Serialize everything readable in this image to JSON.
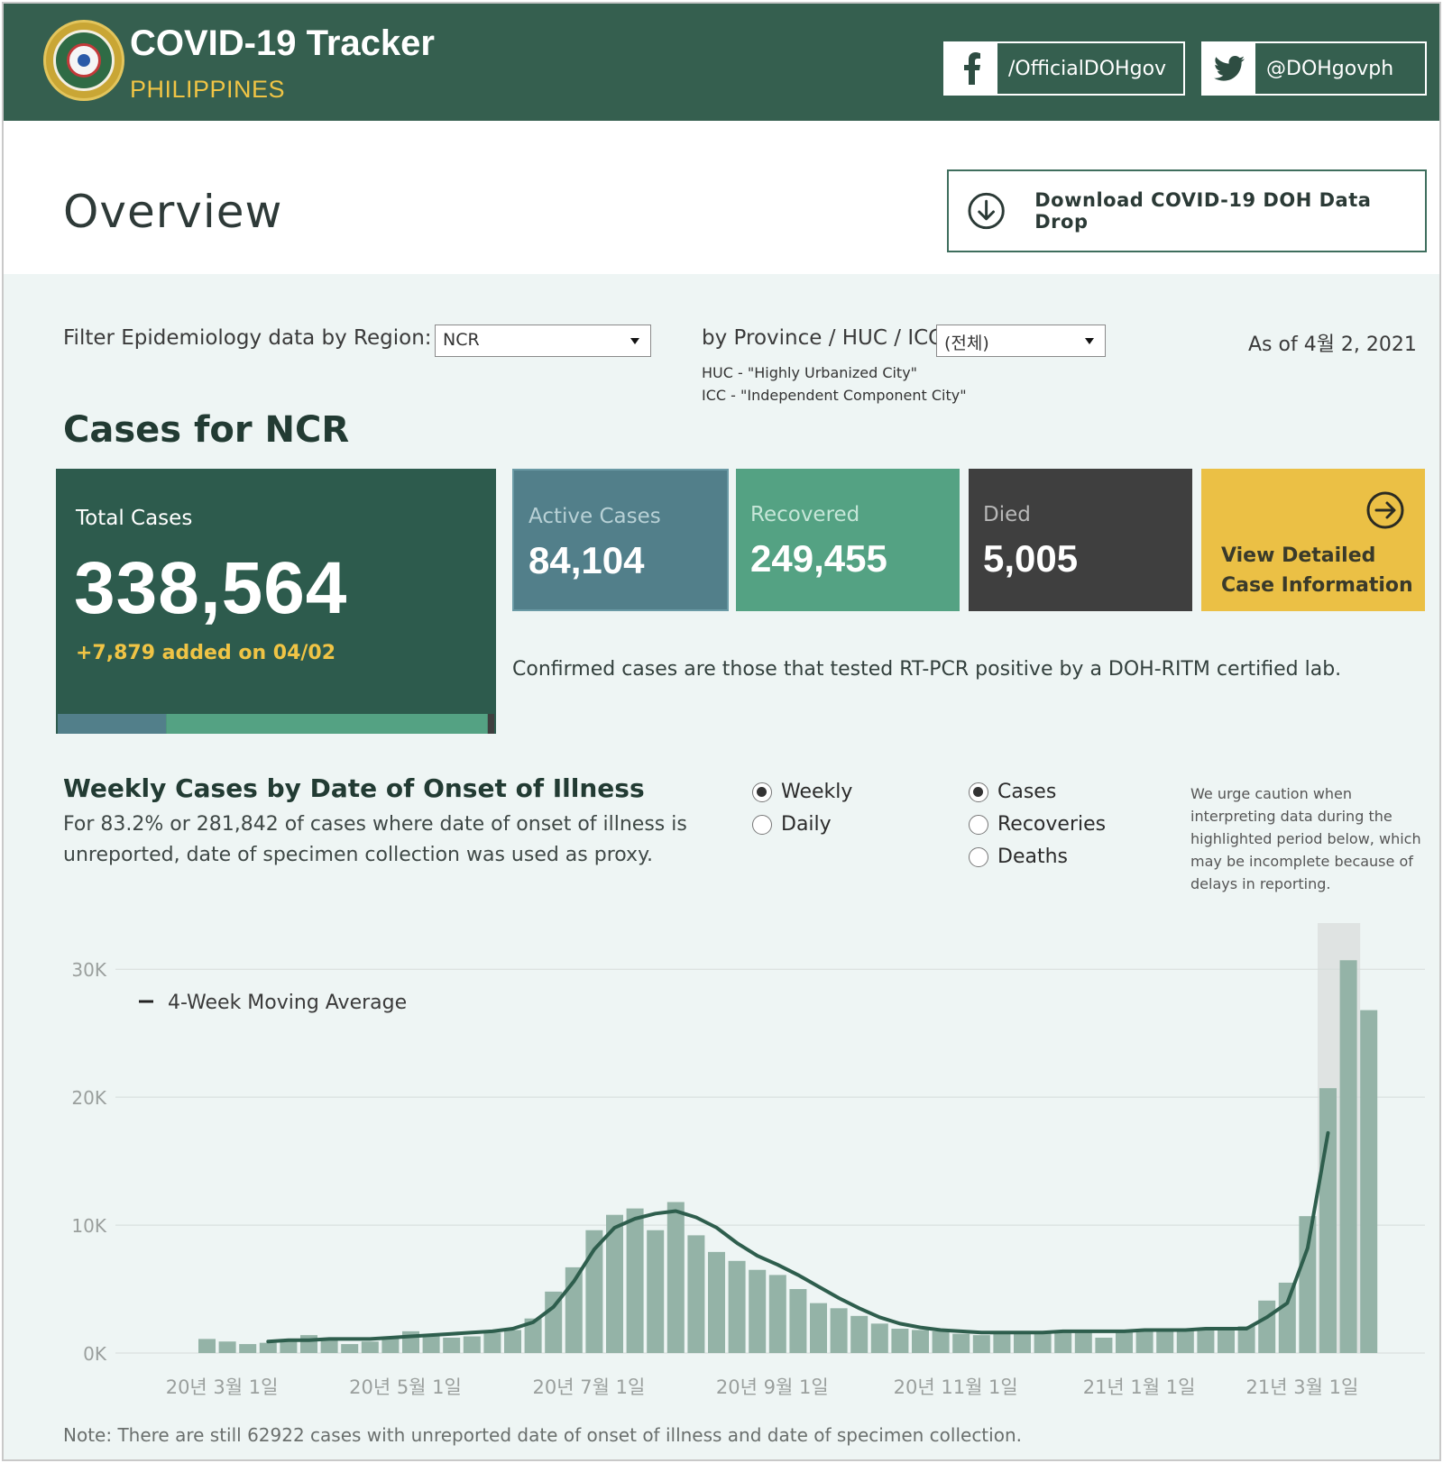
{
  "header": {
    "title": "COVID-19 Tracker",
    "subtitle": "PHILIPPINES",
    "facebook": "/OfficialDOHgov",
    "twitter": "@DOHgovph"
  },
  "overview": {
    "title": "Overview",
    "download_label": "Download COVID-19 DOH Data Drop"
  },
  "filters": {
    "region_label": "Filter Epidemiology data by Region:",
    "region_value": "NCR",
    "province_label": "by Province / HUC / ICC:",
    "province_value": "(전체)",
    "huc_note": "HUC - \"Highly Urbanized City\"",
    "icc_note": "ICC - \"Independent Component City\"",
    "as_of": "As of 4월 2, 2021"
  },
  "cases": {
    "title": "Cases for NCR",
    "total_label": "Total Cases",
    "total_value": "338,564",
    "added": "+7,879 added on 04/02",
    "active_label": "Active Cases",
    "active_value": "84,104",
    "recovered_label": "Recovered",
    "recovered_value": "249,455",
    "died_label": "Died",
    "died_value": "5,005",
    "detail_line1": "View Detailed",
    "detail_line2": "Case Information",
    "confirmed_note": "Confirmed cases are those that tested RT-PCR positive by a DOH-RITM certified lab.",
    "breakdown": {
      "active": 84104,
      "recovered": 249455,
      "died": 5005,
      "total": 338564
    }
  },
  "chart_section": {
    "title": "Weekly Cases by Date of Onset of Illness",
    "subtitle": "For 83.2% or 281,842 of cases where date of onset of illness is unreported, date of specimen collection was used as proxy.",
    "period_options": [
      {
        "label": "Weekly",
        "selected": true
      },
      {
        "label": "Daily",
        "selected": false
      }
    ],
    "metric_options": [
      {
        "label": "Cases",
        "selected": true
      },
      {
        "label": "Recoveries",
        "selected": false
      },
      {
        "label": "Deaths",
        "selected": false
      }
    ],
    "caution": "We urge caution when interpreting data during the highlighted period below, which may be incomplete because of delays in reporting.",
    "footnote": "Note: There are still 62922 cases with unreported date of onset of illness and date of specimen collection."
  },
  "colors": {
    "header_bg": "#355f4f",
    "accent_yellow": "#f0c445",
    "bar": "#94b3a7",
    "line": "#2e5e4d",
    "active": "#527f8a",
    "recovered": "#54a283",
    "died": "#3f3f3f"
  },
  "chart_data": {
    "type": "bar",
    "title": "Weekly Cases by Date of Onset of Illness",
    "xlabel": "",
    "ylabel": "",
    "ylim": [
      0,
      31000
    ],
    "yticks": [
      0,
      10000,
      20000,
      30000
    ],
    "ytick_labels": [
      "0K",
      "10K",
      "20K",
      "30K"
    ],
    "xtick_labels": [
      "20년 3월 1일",
      "20년 5월 1일",
      "20년 7월 1일",
      "20년 9월 1일",
      "20년 11월 1일",
      "21년 1월 1일",
      "21년 3월 1일"
    ],
    "xtick_week_index": [
      1,
      10,
      19,
      28,
      37,
      46,
      54
    ],
    "legend": [
      "4-Week Moving Average"
    ],
    "highlighted_weeks": [
      55,
      56
    ],
    "series": [
      {
        "name": "Weekly Cases",
        "values": [
          1100,
          900,
          700,
          800,
          1000,
          1400,
          1100,
          700,
          900,
          1200,
          1700,
          1300,
          1200,
          1300,
          1600,
          1800,
          2700,
          4800,
          6700,
          9600,
          10800,
          11300,
          9600,
          11800,
          9200,
          7900,
          7200,
          6500,
          6100,
          5000,
          3900,
          3500,
          2900,
          2300,
          1900,
          1800,
          1700,
          1500,
          1400,
          1600,
          1600,
          1700,
          1700,
          1800,
          1200,
          1800,
          1800,
          1900,
          1900,
          1900,
          1900,
          2100,
          4100,
          5500,
          10700,
          20700,
          30700,
          26800
        ]
      },
      {
        "name": "4-Week Moving Average",
        "values": [
          null,
          null,
          null,
          900,
          1000,
          1000,
          1100,
          1100,
          1100,
          1200,
          1300,
          1400,
          1500,
          1600,
          1700,
          1900,
          2400,
          3600,
          5600,
          8100,
          9800,
          10500,
          10900,
          11100,
          10600,
          9800,
          8600,
          7600,
          6900,
          6100,
          5200,
          4300,
          3500,
          2800,
          2300,
          2000,
          1800,
          1700,
          1600,
          1600,
          1600,
          1600,
          1700,
          1700,
          1700,
          1700,
          1800,
          1800,
          1800,
          1900,
          1900,
          1900,
          2800,
          3900,
          8200,
          17200,
          null,
          null
        ]
      }
    ]
  }
}
